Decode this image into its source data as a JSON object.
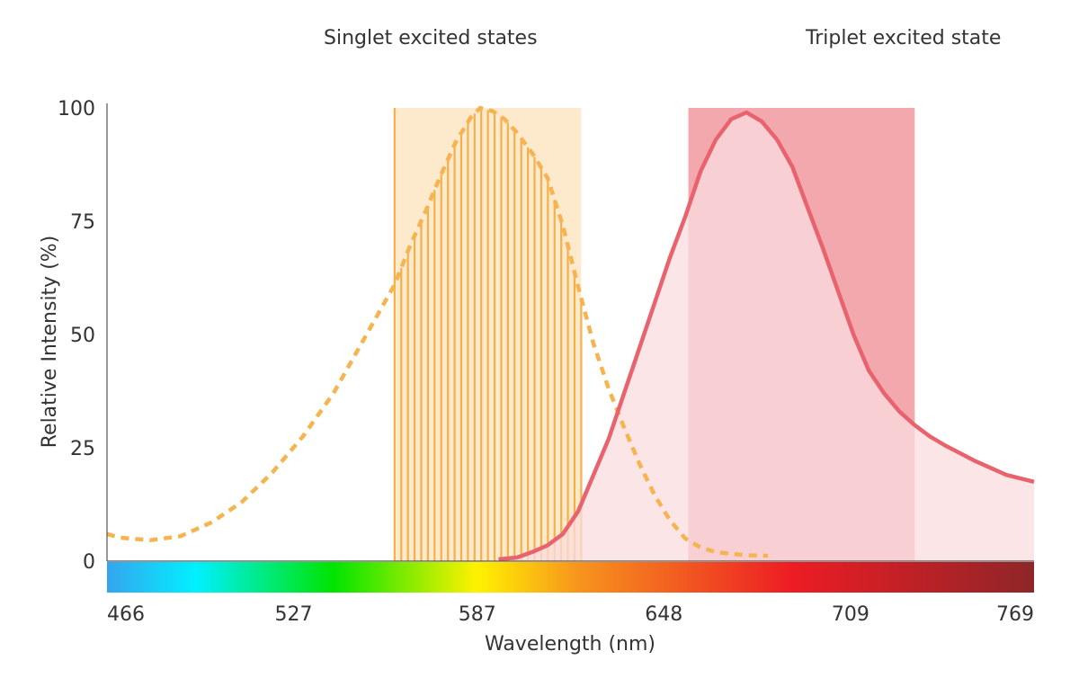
{
  "chart_data": {
    "type": "line",
    "xlabel": "Wavelength (nm)",
    "ylabel": "Relative Intensity (%)",
    "xlim": [
      466,
      769
    ],
    "ylim": [
      0,
      100
    ],
    "x_ticks": [
      "466",
      "527",
      "587",
      "648",
      "709",
      "769"
    ],
    "y_ticks": [
      "0",
      "25",
      "50",
      "75",
      "100"
    ],
    "region_labels": {
      "singlet": "Singlet excited states",
      "triplet": "Triplet excited state"
    },
    "regions": [
      {
        "key": "singlet",
        "x_start": 560,
        "x_end": 621,
        "y_top": 100,
        "color": "#fde9cc",
        "pattern": "vertical-lines",
        "line_color": "#f5b04a"
      },
      {
        "key": "triplet",
        "x_start": 656,
        "x_end": 730,
        "y_top": 100,
        "color": "#f3a8ae"
      }
    ],
    "series": [
      {
        "key": "singlet",
        "style": "dashed",
        "color": "#f7b350",
        "x": [
          466,
          470,
          480,
          490,
          500,
          510,
          520,
          530,
          540,
          550,
          555,
          560,
          565,
          570,
          575,
          580,
          585,
          588,
          592,
          596,
          600,
          605,
          610,
          615,
          620,
          625,
          630,
          635,
          640,
          645,
          650,
          655,
          660,
          665,
          670,
          675,
          680,
          682
        ],
        "y": [
          6,
          5.2,
          4.6,
          5.5,
          8.5,
          13,
          19.5,
          27.5,
          37,
          49,
          55,
          61,
          69.5,
          77,
          85,
          92.5,
          98,
          100,
          99.3,
          97.5,
          94.5,
          90,
          84.5,
          74,
          60.5,
          48,
          38,
          29.5,
          21.5,
          14.5,
          9,
          5,
          3,
          2,
          1.6,
          1.3,
          1.2,
          1.2
        ]
      },
      {
        "key": "triplet",
        "style": "solid",
        "color": "#e8636e",
        "fill": "#f9dcdf",
        "x": [
          594,
          600,
          605,
          610,
          615,
          620,
          625,
          630,
          635,
          640,
          645,
          650,
          655,
          660,
          665,
          670,
          675,
          680,
          685,
          690,
          695,
          700,
          705,
          710,
          715,
          720,
          725,
          730,
          735,
          740,
          750,
          760,
          769
        ],
        "y": [
          0.4,
          0.8,
          2,
          3.5,
          6,
          11,
          19,
          27,
          37,
          47,
          57,
          67,
          76,
          86,
          93,
          97.5,
          99,
          97,
          93,
          87,
          78,
          69,
          59.5,
          50,
          42,
          37,
          33,
          30,
          27.5,
          25.5,
          22,
          19,
          17.5
        ]
      }
    ],
    "colorbar": {
      "stops": [
        {
          "x": 466,
          "color": "#35a4ee"
        },
        {
          "x": 495,
          "color": "#00f0ff"
        },
        {
          "x": 540,
          "color": "#00e400"
        },
        {
          "x": 587,
          "color": "#fff200"
        },
        {
          "x": 620,
          "color": "#f7941d"
        },
        {
          "x": 690,
          "color": "#ed1c24"
        },
        {
          "x": 769,
          "color": "#8e2628"
        }
      ]
    }
  }
}
